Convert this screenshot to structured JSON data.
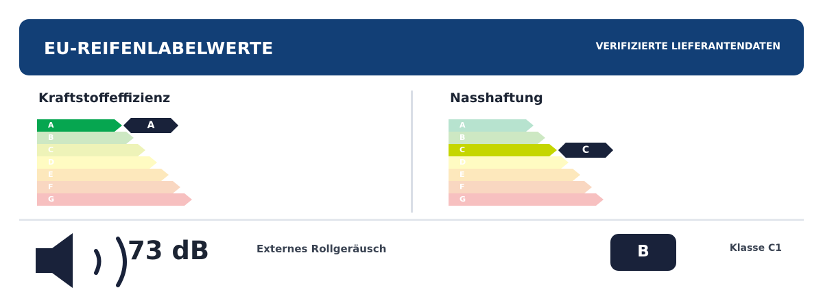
{
  "header": {
    "title": "EU-REIFENLABELWERTE",
    "badge": "VERIFIZIERTE LIEFERANTENDATEN",
    "color": "#123f76"
  },
  "scale_letters": [
    "A",
    "B",
    "C",
    "D",
    "E",
    "F",
    "G"
  ],
  "scale_colors": {
    "full": [
      "#06a650",
      "#55b233",
      "#c5d600",
      "#fff000",
      "#fbba00",
      "#eb690b",
      "#e30613"
    ],
    "faded": [
      "#b7e3cf",
      "#cde8c3",
      "#eef3b8",
      "#fffbc2",
      "#fde8bc",
      "#f9d7c1",
      "#f7c0c0"
    ]
  },
  "fuel_efficiency": {
    "title": "Kraftstoffeffizienz",
    "rating": "A",
    "rating_index": 0
  },
  "wet_grip": {
    "title": "Nasshaftung",
    "rating": "C",
    "rating_index": 2
  },
  "noise": {
    "value": "73 dB",
    "label": "Externes Rollgeräusch",
    "class": "B",
    "icon": "speaker-icon"
  },
  "tyre_class": "Klasse C1"
}
